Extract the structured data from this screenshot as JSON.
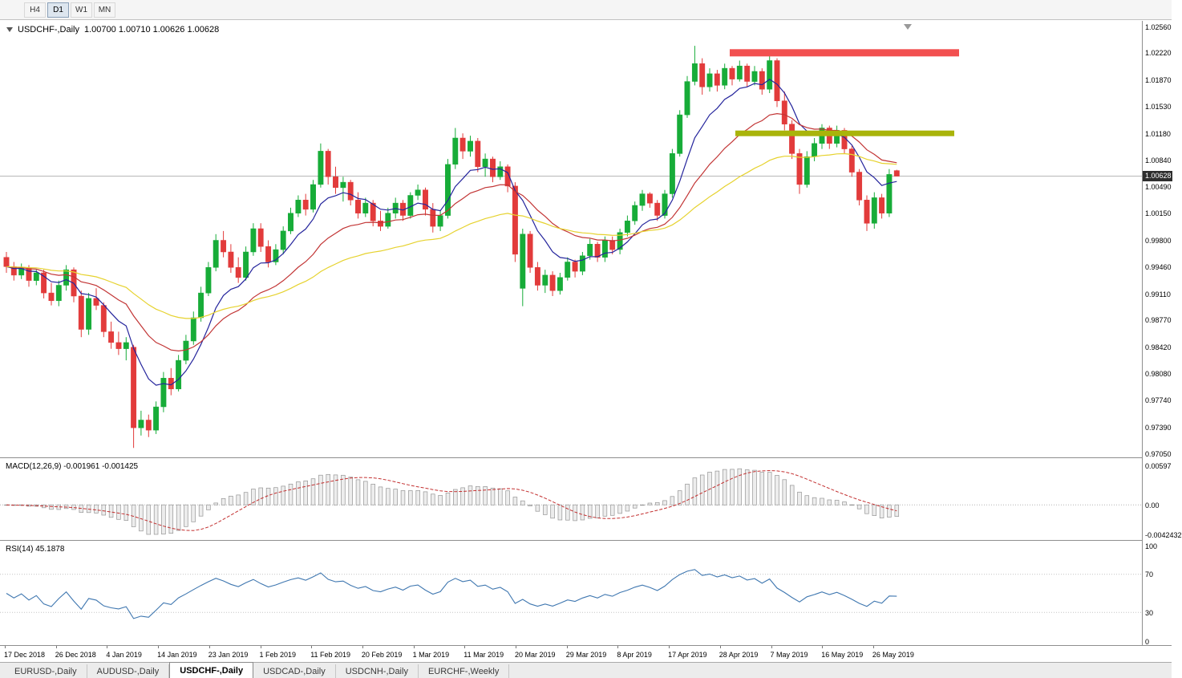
{
  "toolbar": {
    "periods": [
      {
        "label": "H4",
        "active": false
      },
      {
        "label": "D1",
        "active": true
      },
      {
        "label": "W1",
        "active": false
      },
      {
        "label": "MN",
        "active": false
      }
    ]
  },
  "chart_header": {
    "symbol": "USDCHF-,Daily",
    "ohlc": "1.00700 1.00710 1.00626 1.00628"
  },
  "tabs": {
    "active_index": 2,
    "items": [
      {
        "label": "EURUSD-,Daily"
      },
      {
        "label": "AUDUSD-,Daily"
      },
      {
        "label": "USDCHF-,Daily"
      },
      {
        "label": "USDCAD-,Daily"
      },
      {
        "label": "USDCNH-,Daily"
      },
      {
        "label": "EURCHF-,Weekly"
      }
    ]
  },
  "chart_data": {
    "type": "candlestick",
    "symbol": "USDCHF",
    "timeframe": "Daily",
    "title": "USDCHF-,Daily",
    "current_price": 1.00628,
    "current_price_label": "1.00628",
    "ylim": [
      0.9705,
      1.0256
    ],
    "y_tick_labels": [
      "1.02560",
      "1.02220",
      "1.01870",
      "1.01530",
      "1.01180",
      "1.00840",
      "1.00490",
      "1.00150",
      "0.99800",
      "0.99460",
      "0.99110",
      "0.98770",
      "0.98420",
      "0.98080",
      "0.97740",
      "0.97390",
      "0.97050"
    ],
    "x_tick_labels": [
      "17 Dec 2018",
      "26 Dec 2018",
      "4 Jan 2019",
      "14 Jan 2019",
      "23 Jan 2019",
      "1 Feb 2019",
      "11 Feb 2019",
      "20 Feb 2019",
      "1 Mar 2019",
      "11 Mar 2019",
      "20 Mar 2019",
      "29 Mar 2019",
      "8 Apr 2019",
      "17 Apr 2019",
      "28 Apr 2019",
      "7 May 2019",
      "16 May 2019",
      "26 May 2019"
    ],
    "colors": {
      "bull": "#17ac38",
      "bear": "#e23b3b",
      "ma_fast": "#24249c",
      "ma_mid": "#c23535",
      "ma_slow": "#e6d22e",
      "macd_hist_fill": "#ededed",
      "macd_hist_border": "#949494",
      "macd_signal": "#c33030",
      "rsi_line": "#3f77b0",
      "current_price_line": "#b8b8b8",
      "badge_bg": "#2e2e2e"
    },
    "moving_averages": [
      {
        "name": "fast",
        "period": 8,
        "color": "#24249c"
      },
      {
        "name": "mid",
        "period": 20,
        "color": "#c23535"
      },
      {
        "name": "slow",
        "period": 45,
        "color": "#e6d22e"
      }
    ],
    "overlays": {
      "resistance": {
        "price": 1.0222,
        "x1": 910,
        "x2": 1196,
        "thickness": 9,
        "color": "#f25050"
      },
      "support": {
        "price": 1.0118,
        "x1": 917,
        "x2": 1190,
        "thickness": 7,
        "color": "#a9b40a"
      }
    },
    "sub_charts": [
      {
        "type": "macd",
        "label": "MACD(12,26,9)",
        "values_text": "-0.001961 -0.001425",
        "params": {
          "fast": 12,
          "slow": 26,
          "signal": 9
        },
        "y_tick_labels": [
          "0.00597",
          "0.00",
          "-0.0042432"
        ],
        "range": [
          -0.0042432,
          0.00597
        ]
      },
      {
        "type": "rsi",
        "label": "RSI(14)",
        "value_text": "45.1878",
        "period": 14,
        "levels": [
          70,
          30
        ],
        "y_tick_labels": [
          "100",
          "70",
          "30",
          "0"
        ]
      }
    ],
    "candles": [
      [
        0.9958,
        0.9965,
        0.9938,
        0.9946
      ],
      [
        0.9946,
        0.9952,
        0.9928,
        0.9935
      ],
      [
        0.9935,
        0.995,
        0.993,
        0.9944
      ],
      [
        0.9944,
        0.9948,
        0.992,
        0.9928
      ],
      [
        0.9928,
        0.9942,
        0.9922,
        0.9938
      ],
      [
        0.9938,
        0.9942,
        0.9905,
        0.9912
      ],
      [
        0.9912,
        0.9925,
        0.9896,
        0.9902
      ],
      [
        0.9902,
        0.9928,
        0.9895,
        0.9922
      ],
      [
        0.9922,
        0.9948,
        0.9915,
        0.9942
      ],
      [
        0.9942,
        0.9945,
        0.99,
        0.9908
      ],
      [
        0.9908,
        0.9915,
        0.9855,
        0.9865
      ],
      [
        0.9865,
        0.9912,
        0.9858,
        0.9905
      ],
      [
        0.9905,
        0.9918,
        0.989,
        0.9896
      ],
      [
        0.9896,
        0.99,
        0.9855,
        0.9862
      ],
      [
        0.9862,
        0.9875,
        0.984,
        0.9848
      ],
      [
        0.9848,
        0.9862,
        0.9832,
        0.984
      ],
      [
        0.984,
        0.9855,
        0.9825,
        0.9848
      ],
      [
        0.9842,
        0.9845,
        0.9712,
        0.9738
      ],
      [
        0.9738,
        0.976,
        0.9728,
        0.9748
      ],
      [
        0.9748,
        0.9755,
        0.9726,
        0.9735
      ],
      [
        0.9735,
        0.9772,
        0.973,
        0.9765
      ],
      [
        0.9765,
        0.981,
        0.9758,
        0.9802
      ],
      [
        0.9802,
        0.9815,
        0.978,
        0.9788
      ],
      [
        0.9788,
        0.9832,
        0.9785,
        0.9825
      ],
      [
        0.9825,
        0.9858,
        0.982,
        0.985
      ],
      [
        0.985,
        0.9888,
        0.9845,
        0.988
      ],
      [
        0.988,
        0.992,
        0.9875,
        0.9912
      ],
      [
        0.9912,
        0.9952,
        0.9908,
        0.9945
      ],
      [
        0.9945,
        0.9988,
        0.994,
        0.998
      ],
      [
        0.998,
        0.9992,
        0.9958,
        0.9965
      ],
      [
        0.9965,
        0.9975,
        0.9938,
        0.9945
      ],
      [
        0.9945,
        0.9958,
        0.9925,
        0.9932
      ],
      [
        0.9932,
        0.9972,
        0.9928,
        0.9965
      ],
      [
        0.9965,
        1.0002,
        0.996,
        0.9995
      ],
      [
        0.9995,
        1.0002,
        0.9965,
        0.9972
      ],
      [
        0.9972,
        0.998,
        0.9945,
        0.9952
      ],
      [
        0.9952,
        0.9975,
        0.9948,
        0.9968
      ],
      [
        0.9968,
        0.9998,
        0.9962,
        0.9992
      ],
      [
        0.9992,
        1.0022,
        0.9988,
        1.0015
      ],
      [
        1.0015,
        1.0038,
        1.001,
        1.0032
      ],
      [
        1.0032,
        1.004,
        1.0012,
        1.002
      ],
      [
        1.002,
        1.0058,
        1.0016,
        1.0052
      ],
      [
        1.0052,
        1.0105,
        1.0048,
        1.0095
      ],
      [
        1.0095,
        1.0098,
        1.0052,
        1.0062
      ],
      [
        1.0062,
        1.0075,
        1.004,
        1.0048
      ],
      [
        1.0048,
        1.0062,
        1.003,
        1.0055
      ],
      [
        1.0055,
        1.0058,
        1.0025,
        1.0032
      ],
      [
        1.0032,
        1.0042,
        1.0008,
        1.0015
      ],
      [
        1.0015,
        1.0035,
        1.001,
        1.0028
      ],
      [
        1.0028,
        1.0032,
        0.9998,
        1.0005
      ],
      [
        1.0005,
        1.0018,
        0.9992,
        0.9998
      ],
      [
        0.9998,
        1.0022,
        0.9995,
        1.0015
      ],
      [
        1.0015,
        1.0035,
        1.0008,
        1.0028
      ],
      [
        1.0028,
        1.0032,
        1.0005,
        1.0012
      ],
      [
        1.0012,
        1.0042,
        1.0008,
        1.0038
      ],
      [
        1.0038,
        1.0052,
        1.0032,
        1.0045
      ],
      [
        1.0045,
        1.0048,
        1.0012,
        1.002
      ],
      [
        1.002,
        1.0028,
        0.999,
        0.9998
      ],
      [
        0.9998,
        1.0018,
        0.9992,
        1.0012
      ],
      [
        1.0012,
        1.0085,
        1.0008,
        1.0078
      ],
      [
        1.0078,
        1.0125,
        1.0072,
        1.0112
      ],
      [
        1.0112,
        1.0118,
        1.0085,
        1.0095
      ],
      [
        1.0095,
        1.0115,
        1.0088,
        1.0108
      ],
      [
        1.0108,
        1.0112,
        1.0068,
        1.0075
      ],
      [
        1.0075,
        1.0092,
        1.0062,
        1.0085
      ],
      [
        1.0085,
        1.0088,
        1.0055,
        1.0062
      ],
      [
        1.0062,
        1.0082,
        1.0058,
        1.0075
      ],
      [
        1.0075,
        1.0078,
        1.0042,
        1.005
      ],
      [
        1.005,
        1.0055,
        0.9952,
        0.9962
      ],
      [
        0.9918,
        0.9995,
        0.9895,
        0.9988
      ],
      [
        0.9988,
        0.9992,
        0.9938,
        0.9945
      ],
      [
        0.9945,
        0.9952,
        0.9915,
        0.9922
      ],
      [
        0.9922,
        0.9942,
        0.9912,
        0.9935
      ],
      [
        0.9935,
        0.994,
        0.9908,
        0.9915
      ],
      [
        0.9915,
        0.9938,
        0.991,
        0.9932
      ],
      [
        0.9932,
        0.9958,
        0.9928,
        0.9952
      ],
      [
        0.9952,
        0.9955,
        0.9932,
        0.994
      ],
      [
        0.994,
        0.9965,
        0.9935,
        0.996
      ],
      [
        0.996,
        0.9982,
        0.9955,
        0.9975
      ],
      [
        0.9975,
        0.9978,
        0.9952,
        0.9958
      ],
      [
        0.9958,
        0.9985,
        0.9952,
        0.998
      ],
      [
        0.998,
        0.9985,
        0.9962,
        0.9968
      ],
      [
        0.9968,
        0.9995,
        0.9962,
        0.999
      ],
      [
        0.999,
        1.0012,
        0.9985,
        1.0005
      ],
      [
        1.0005,
        1.003,
        1.0,
        1.0025
      ],
      [
        1.0025,
        1.0045,
        1.0018,
        1.004
      ],
      [
        1.004,
        1.0042,
        1.0022,
        1.0028
      ],
      [
        1.0028,
        1.0032,
        1.0005,
        1.0012
      ],
      [
        1.0012,
        1.0045,
        1.0008,
        1.004
      ],
      [
        1.004,
        1.0098,
        1.0035,
        1.0092
      ],
      [
        1.0092,
        1.0148,
        1.0088,
        1.0142
      ],
      [
        1.0142,
        1.0192,
        1.0138,
        1.0185
      ],
      [
        1.0185,
        1.0231,
        1.018,
        1.0208
      ],
      [
        1.0208,
        1.0215,
        1.0168,
        1.0178
      ],
      [
        1.0178,
        1.0202,
        1.0172,
        1.0195
      ],
      [
        1.0195,
        1.02,
        1.0172,
        1.018
      ],
      [
        1.018,
        1.0208,
        1.0175,
        1.0202
      ],
      [
        1.0202,
        1.0205,
        1.018,
        1.0188
      ],
      [
        1.0188,
        1.0212,
        1.0185,
        1.0205
      ],
      [
        1.0205,
        1.0208,
        1.0178,
        1.0185
      ],
      [
        1.0185,
        1.0205,
        1.018,
        1.0198
      ],
      [
        1.0198,
        1.0202,
        1.0168,
        1.0175
      ],
      [
        1.0175,
        1.0222,
        1.017,
        1.0212
      ],
      [
        1.0212,
        1.0215,
        1.0152,
        1.016
      ],
      [
        1.016,
        1.0172,
        1.0122,
        1.013
      ],
      [
        1.013,
        1.0135,
        1.0085,
        1.0092
      ],
      [
        1.0092,
        1.0098,
        1.004,
        1.0052
      ],
      [
        1.0052,
        1.0095,
        1.0048,
        1.0088
      ],
      [
        1.0088,
        1.0112,
        1.0082,
        1.0105
      ],
      [
        1.0105,
        1.013,
        1.0098,
        1.0125
      ],
      [
        1.0125,
        1.0128,
        1.0098,
        1.0105
      ],
      [
        1.0105,
        1.0128,
        1.01,
        1.0122
      ],
      [
        1.0122,
        1.0125,
        1.0092,
        1.0098
      ],
      [
        1.0098,
        1.0102,
        1.0062,
        1.0068
      ],
      [
        1.0068,
        1.0072,
        1.0025,
        1.0032
      ],
      [
        1.0032,
        1.0038,
        0.9992,
        1.0002
      ],
      [
        1.0002,
        1.0042,
        0.9995,
        1.0035
      ],
      [
        1.0035,
        1.004,
        1.0008,
        1.0015
      ],
      [
        1.0015,
        1.0072,
        1.001,
        1.0065
      ],
      [
        1.007,
        1.0071,
        1.00626,
        1.00628
      ]
    ]
  }
}
